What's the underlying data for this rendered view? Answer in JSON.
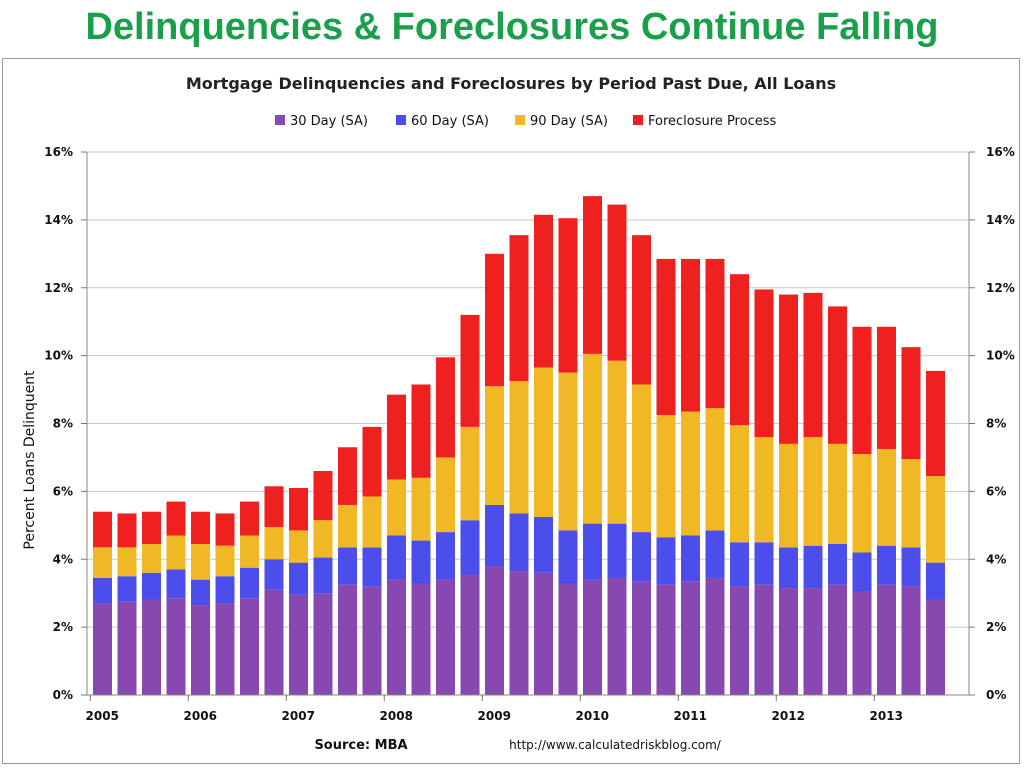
{
  "slide": {
    "title": "Delinquencies & Foreclosures Continue Falling"
  },
  "chart_data": {
    "type": "bar",
    "stacked": true,
    "title": "Mortgage Delinquencies and Foreclosures by Period Past Due, All Loans",
    "ylabel": "Percent Loans Delinquent",
    "xlabel": "",
    "ylim": [
      0,
      16
    ],
    "y_ticks": [
      "0%",
      "2%",
      "4%",
      "6%",
      "8%",
      "10%",
      "12%",
      "14%",
      "16%"
    ],
    "year_labels": [
      "2005",
      "2006",
      "2007",
      "2008",
      "2009",
      "2010",
      "2011",
      "2012",
      "2013"
    ],
    "categories": [
      "2005Q1",
      "2005Q2",
      "2005Q3",
      "2005Q4",
      "2006Q1",
      "2006Q2",
      "2006Q3",
      "2006Q4",
      "2007Q1",
      "2007Q2",
      "2007Q3",
      "2007Q4",
      "2008Q1",
      "2008Q2",
      "2008Q3",
      "2008Q4",
      "2009Q1",
      "2009Q2",
      "2009Q3",
      "2009Q4",
      "2010Q1",
      "2010Q2",
      "2010Q3",
      "2010Q4",
      "2011Q1",
      "2011Q2",
      "2011Q3",
      "2011Q4",
      "2012Q1",
      "2012Q2",
      "2012Q3",
      "2012Q4",
      "2013Q1",
      "2013Q2",
      "2013Q3"
    ],
    "legend_position": "top",
    "grid": true,
    "series": [
      {
        "name": "30 Day (SA)",
        "color": "#8748b0",
        "values": [
          2.7,
          2.75,
          2.8,
          2.85,
          2.65,
          2.7,
          2.85,
          3.1,
          2.95,
          3.0,
          3.25,
          3.2,
          3.4,
          3.3,
          3.4,
          3.55,
          3.8,
          3.65,
          3.6,
          3.3,
          3.4,
          3.45,
          3.35,
          3.25,
          3.35,
          3.45,
          3.2,
          3.25,
          3.15,
          3.15,
          3.25,
          3.05,
          3.25,
          3.2,
          2.8
        ]
      },
      {
        "name": "60 Day (SA)",
        "color": "#4b4eea",
        "values": [
          0.75,
          0.75,
          0.8,
          0.85,
          0.75,
          0.8,
          0.9,
          0.9,
          0.95,
          1.05,
          1.1,
          1.15,
          1.3,
          1.25,
          1.4,
          1.6,
          1.8,
          1.7,
          1.65,
          1.55,
          1.65,
          1.6,
          1.45,
          1.4,
          1.35,
          1.4,
          1.3,
          1.25,
          1.2,
          1.25,
          1.2,
          1.15,
          1.15,
          1.15,
          1.1
        ]
      },
      {
        "name": "90 Day (SA)",
        "color": "#f0b824",
        "values": [
          0.9,
          0.85,
          0.85,
          1.0,
          1.05,
          0.9,
          0.95,
          0.95,
          0.95,
          1.1,
          1.25,
          1.5,
          1.65,
          1.85,
          2.2,
          2.75,
          3.5,
          3.9,
          4.4,
          4.65,
          5.0,
          4.8,
          4.35,
          3.6,
          3.65,
          3.6,
          3.45,
          3.1,
          3.05,
          3.2,
          2.95,
          2.9,
          2.85,
          2.6,
          2.55
        ]
      },
      {
        "name": "Foreclosure Process",
        "color": "#ee2020",
        "values": [
          1.05,
          1.0,
          0.95,
          1.0,
          0.95,
          0.95,
          1.0,
          1.2,
          1.25,
          1.45,
          1.7,
          2.05,
          2.5,
          2.75,
          2.95,
          3.3,
          3.9,
          4.3,
          4.5,
          4.55,
          4.65,
          4.6,
          4.4,
          4.6,
          4.5,
          4.4,
          4.45,
          4.35,
          4.4,
          4.25,
          4.05,
          3.75,
          3.6,
          3.3,
          3.1
        ]
      }
    ],
    "source": "Source: MBA",
    "url": "http://www.calculatedriskblog.com/"
  }
}
